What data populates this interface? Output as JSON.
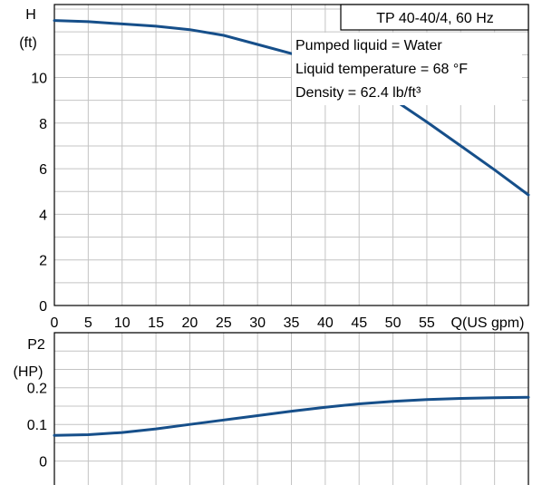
{
  "chart_data": [
    {
      "type": "line",
      "title": "TP 40-40/4, 60 Hz",
      "ylabel_top": "H",
      "ylabel_unit": "(ft)",
      "xlabel": "Q(US gpm)",
      "annotations": [
        "Pumped liquid = Water",
        "Liquid temperature = 68 °F",
        "Density = 62.4 lb/ft³"
      ],
      "xlim": [
        0,
        70
      ],
      "ylim": [
        0,
        13.2
      ],
      "x_ticks": [
        "0",
        "5",
        "10",
        "15",
        "20",
        "25",
        "30",
        "35",
        "40",
        "45",
        "50",
        "55"
      ],
      "y_ticks": [
        "0",
        "2",
        "4",
        "6",
        "8",
        "10"
      ],
      "grid": true,
      "series": [
        {
          "color": "#164f8a",
          "x": [
            0,
            5,
            10,
            15,
            20,
            25,
            30,
            35,
            40,
            45,
            50,
            55,
            60,
            65,
            70
          ],
          "y": [
            12.5,
            12.45,
            12.35,
            12.25,
            12.1,
            11.85,
            11.45,
            11.05,
            10.5,
            9.85,
            9.05,
            8.05,
            7.0,
            5.95,
            4.85
          ]
        }
      ]
    },
    {
      "type": "line",
      "ylabel_top": "P2",
      "ylabel_unit": "(HP)",
      "xlim": [
        0,
        70
      ],
      "ylim": [
        -0.065,
        0.35
      ],
      "y_ticks": [
        "0",
        "0.1",
        "0.2"
      ],
      "grid": true,
      "series": [
        {
          "color": "#164f8a",
          "x": [
            0,
            5,
            10,
            15,
            20,
            25,
            30,
            35,
            40,
            45,
            50,
            55,
            60,
            65,
            70
          ],
          "y": [
            0.07,
            0.072,
            0.078,
            0.088,
            0.1,
            0.112,
            0.124,
            0.136,
            0.147,
            0.156,
            0.163,
            0.168,
            0.171,
            0.173,
            0.174
          ]
        }
      ]
    }
  ]
}
